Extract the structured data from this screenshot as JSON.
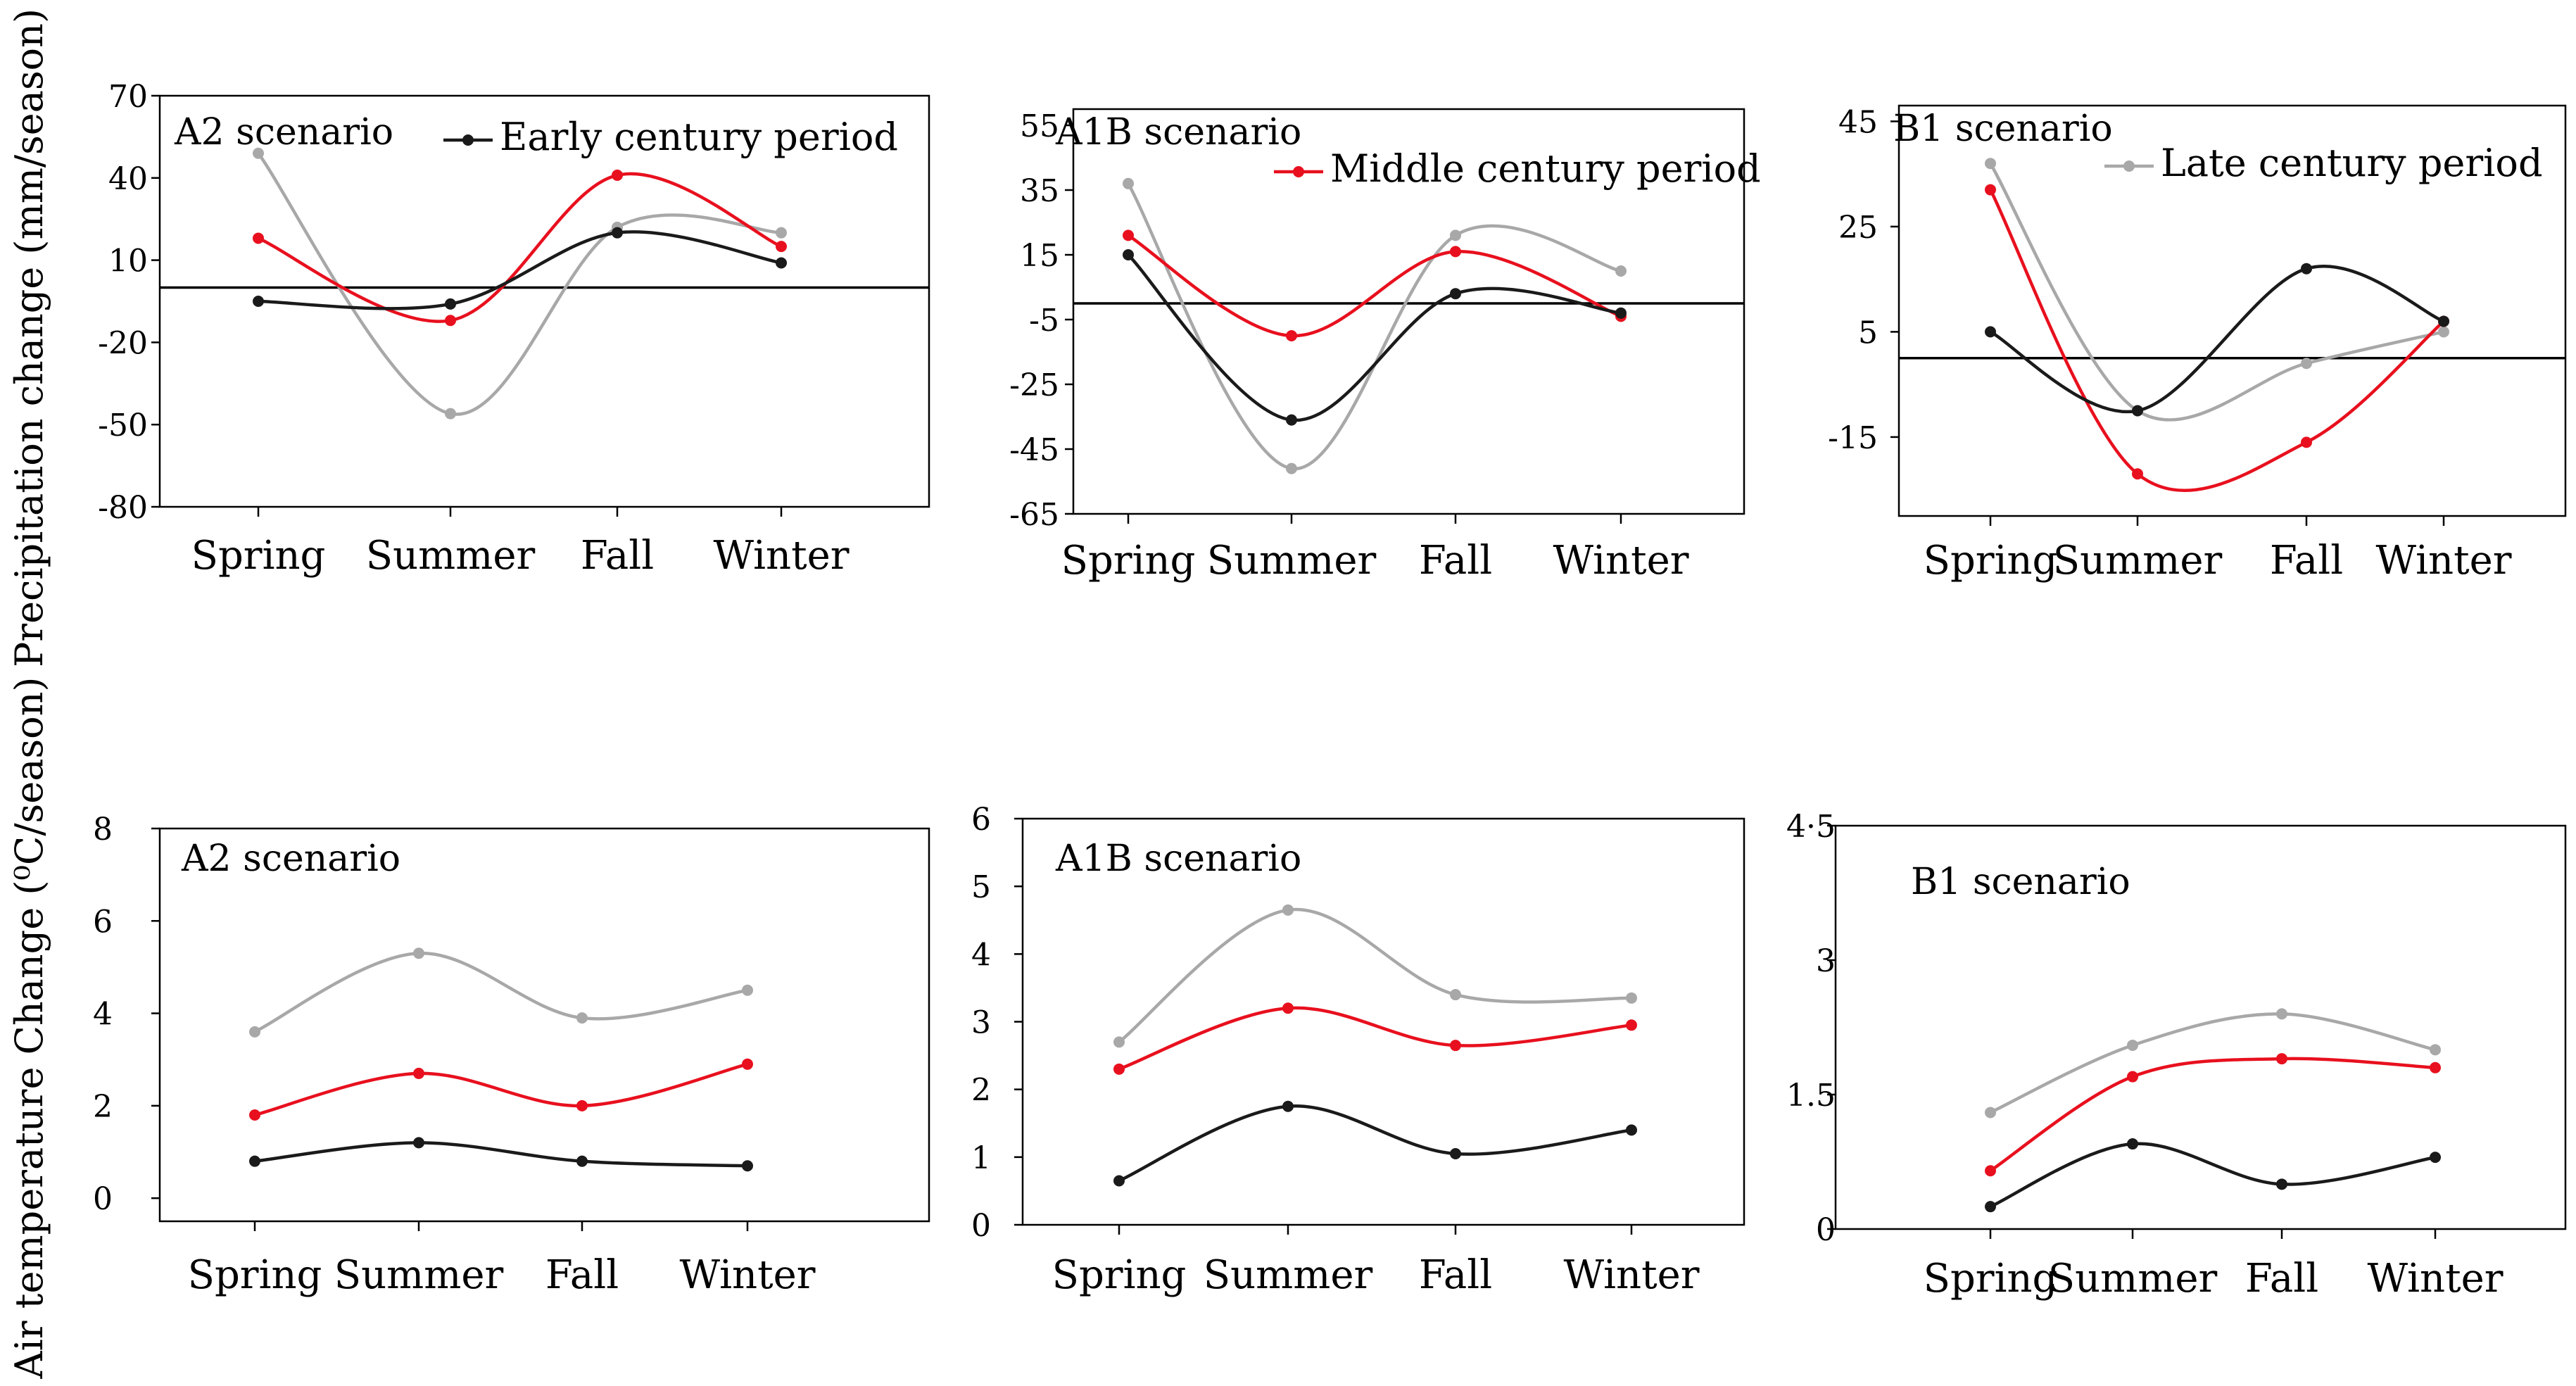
{
  "figure": {
    "ylabel_top": "Precipitation change (mm/season)",
    "ylabel_bottom": "Air temperature Change (⁰C/season)"
  },
  "colors": {
    "early": "#1a1a1a",
    "middle": "#e8101e",
    "late": "#a8a8a8",
    "axis": "#000000"
  },
  "chart_data": [
    {
      "id": "precip-a2",
      "type": "line",
      "title": "A2 scenario",
      "categories": [
        "Spring",
        "Summer",
        "Fall",
        "Winter"
      ],
      "ylim": [
        -80,
        70
      ],
      "yticks": [
        70,
        40,
        10,
        -20,
        -50,
        -80
      ],
      "ytick_labels": [
        "70",
        "40",
        "10",
        "-20",
        "-50",
        "-80"
      ],
      "zero_line": 0,
      "legend": "Early century period",
      "series": [
        {
          "name": "Early century period",
          "values": [
            -5,
            -6,
            20,
            9
          ]
        },
        {
          "name": "Middle century period",
          "values": [
            18,
            -12,
            41,
            15
          ]
        },
        {
          "name": "Late century period",
          "values": [
            49,
            -46,
            22,
            20
          ]
        }
      ]
    },
    {
      "id": "precip-a1b",
      "type": "line",
      "title": "A1B scenario",
      "categories": [
        "Spring",
        "Summer",
        "Fall",
        "Winter"
      ],
      "ylim": [
        -65,
        60
      ],
      "yticks": [
        55,
        35,
        15,
        -5,
        -25,
        -45,
        -65
      ],
      "ytick_labels": [
        "55",
        "35",
        "15",
        "-5",
        "-25",
        "-45",
        "-65"
      ],
      "zero_line": 0,
      "legend": "Middle century period",
      "series": [
        {
          "name": "Early century period",
          "values": [
            15,
            -36,
            3,
            -3
          ]
        },
        {
          "name": "Middle century period",
          "values": [
            21,
            -10,
            16,
            -4
          ]
        },
        {
          "name": "Late century period",
          "values": [
            37,
            -51,
            21,
            10
          ]
        }
      ]
    },
    {
      "id": "precip-b1",
      "type": "line",
      "title": "B1 scenario",
      "categories": [
        "Spring",
        "Summer",
        "Fall",
        "Winter"
      ],
      "ylim": [
        -30,
        48
      ],
      "yticks": [
        45,
        25,
        5,
        -15
      ],
      "ytick_labels": [
        "45",
        "25",
        "5",
        "-15"
      ],
      "zero_line": 0,
      "legend": "Late century period",
      "series": [
        {
          "name": "Early century period",
          "values": [
            5,
            -10,
            17,
            7
          ]
        },
        {
          "name": "Middle century period",
          "values": [
            32,
            -22,
            -16,
            7
          ]
        },
        {
          "name": "Late century period",
          "values": [
            37,
            -10,
            -1,
            5
          ]
        }
      ]
    },
    {
      "id": "temp-a2",
      "type": "line",
      "title": "A2 scenario",
      "categories": [
        "Spring",
        "Summer",
        "Fall",
        "Winter"
      ],
      "ylim": [
        -0.5,
        8
      ],
      "yticks": [
        8,
        6,
        4,
        2,
        0
      ],
      "ytick_labels": [
        "8",
        "6",
        "4",
        "2",
        "0"
      ],
      "series": [
        {
          "name": "Early century period",
          "values": [
            0.8,
            1.2,
            0.8,
            0.7
          ]
        },
        {
          "name": "Middle century period",
          "values": [
            1.8,
            2.7,
            2.0,
            2.9
          ]
        },
        {
          "name": "Late century period",
          "values": [
            3.6,
            5.3,
            3.9,
            4.5
          ]
        }
      ]
    },
    {
      "id": "temp-a1b",
      "type": "line",
      "title": "A1B scenario",
      "categories": [
        "Spring",
        "Summer",
        "Fall",
        "Winter"
      ],
      "ylim": [
        0,
        6
      ],
      "yticks": [
        6,
        5,
        4,
        3,
        2,
        1,
        0
      ],
      "ytick_labels": [
        "6",
        "5",
        "4",
        "3",
        "2",
        "1",
        "0"
      ],
      "series": [
        {
          "name": "Early century period",
          "values": [
            0.65,
            1.75,
            1.05,
            1.4
          ]
        },
        {
          "name": "Middle century period",
          "values": [
            2.3,
            3.2,
            2.65,
            2.95
          ]
        },
        {
          "name": "Late century period",
          "values": [
            2.7,
            4.65,
            3.4,
            3.35
          ]
        }
      ]
    },
    {
      "id": "temp-b1",
      "type": "line",
      "title": "B1 scenario",
      "categories": [
        "Spring",
        "Summer",
        "Fall",
        "Winter"
      ],
      "ylim": [
        0,
        4.5
      ],
      "yticks": [
        4.5,
        3,
        1.5,
        0
      ],
      "ytick_labels": [
        "4·5",
        "3",
        "1.5",
        "0"
      ],
      "series": [
        {
          "name": "Early century period",
          "values": [
            0.25,
            0.95,
            0.5,
            0.8
          ]
        },
        {
          "name": "Middle century period",
          "values": [
            0.65,
            1.7,
            1.9,
            1.8
          ]
        },
        {
          "name": "Late century period",
          "values": [
            1.3,
            2.05,
            2.4,
            2.0
          ]
        }
      ]
    }
  ]
}
